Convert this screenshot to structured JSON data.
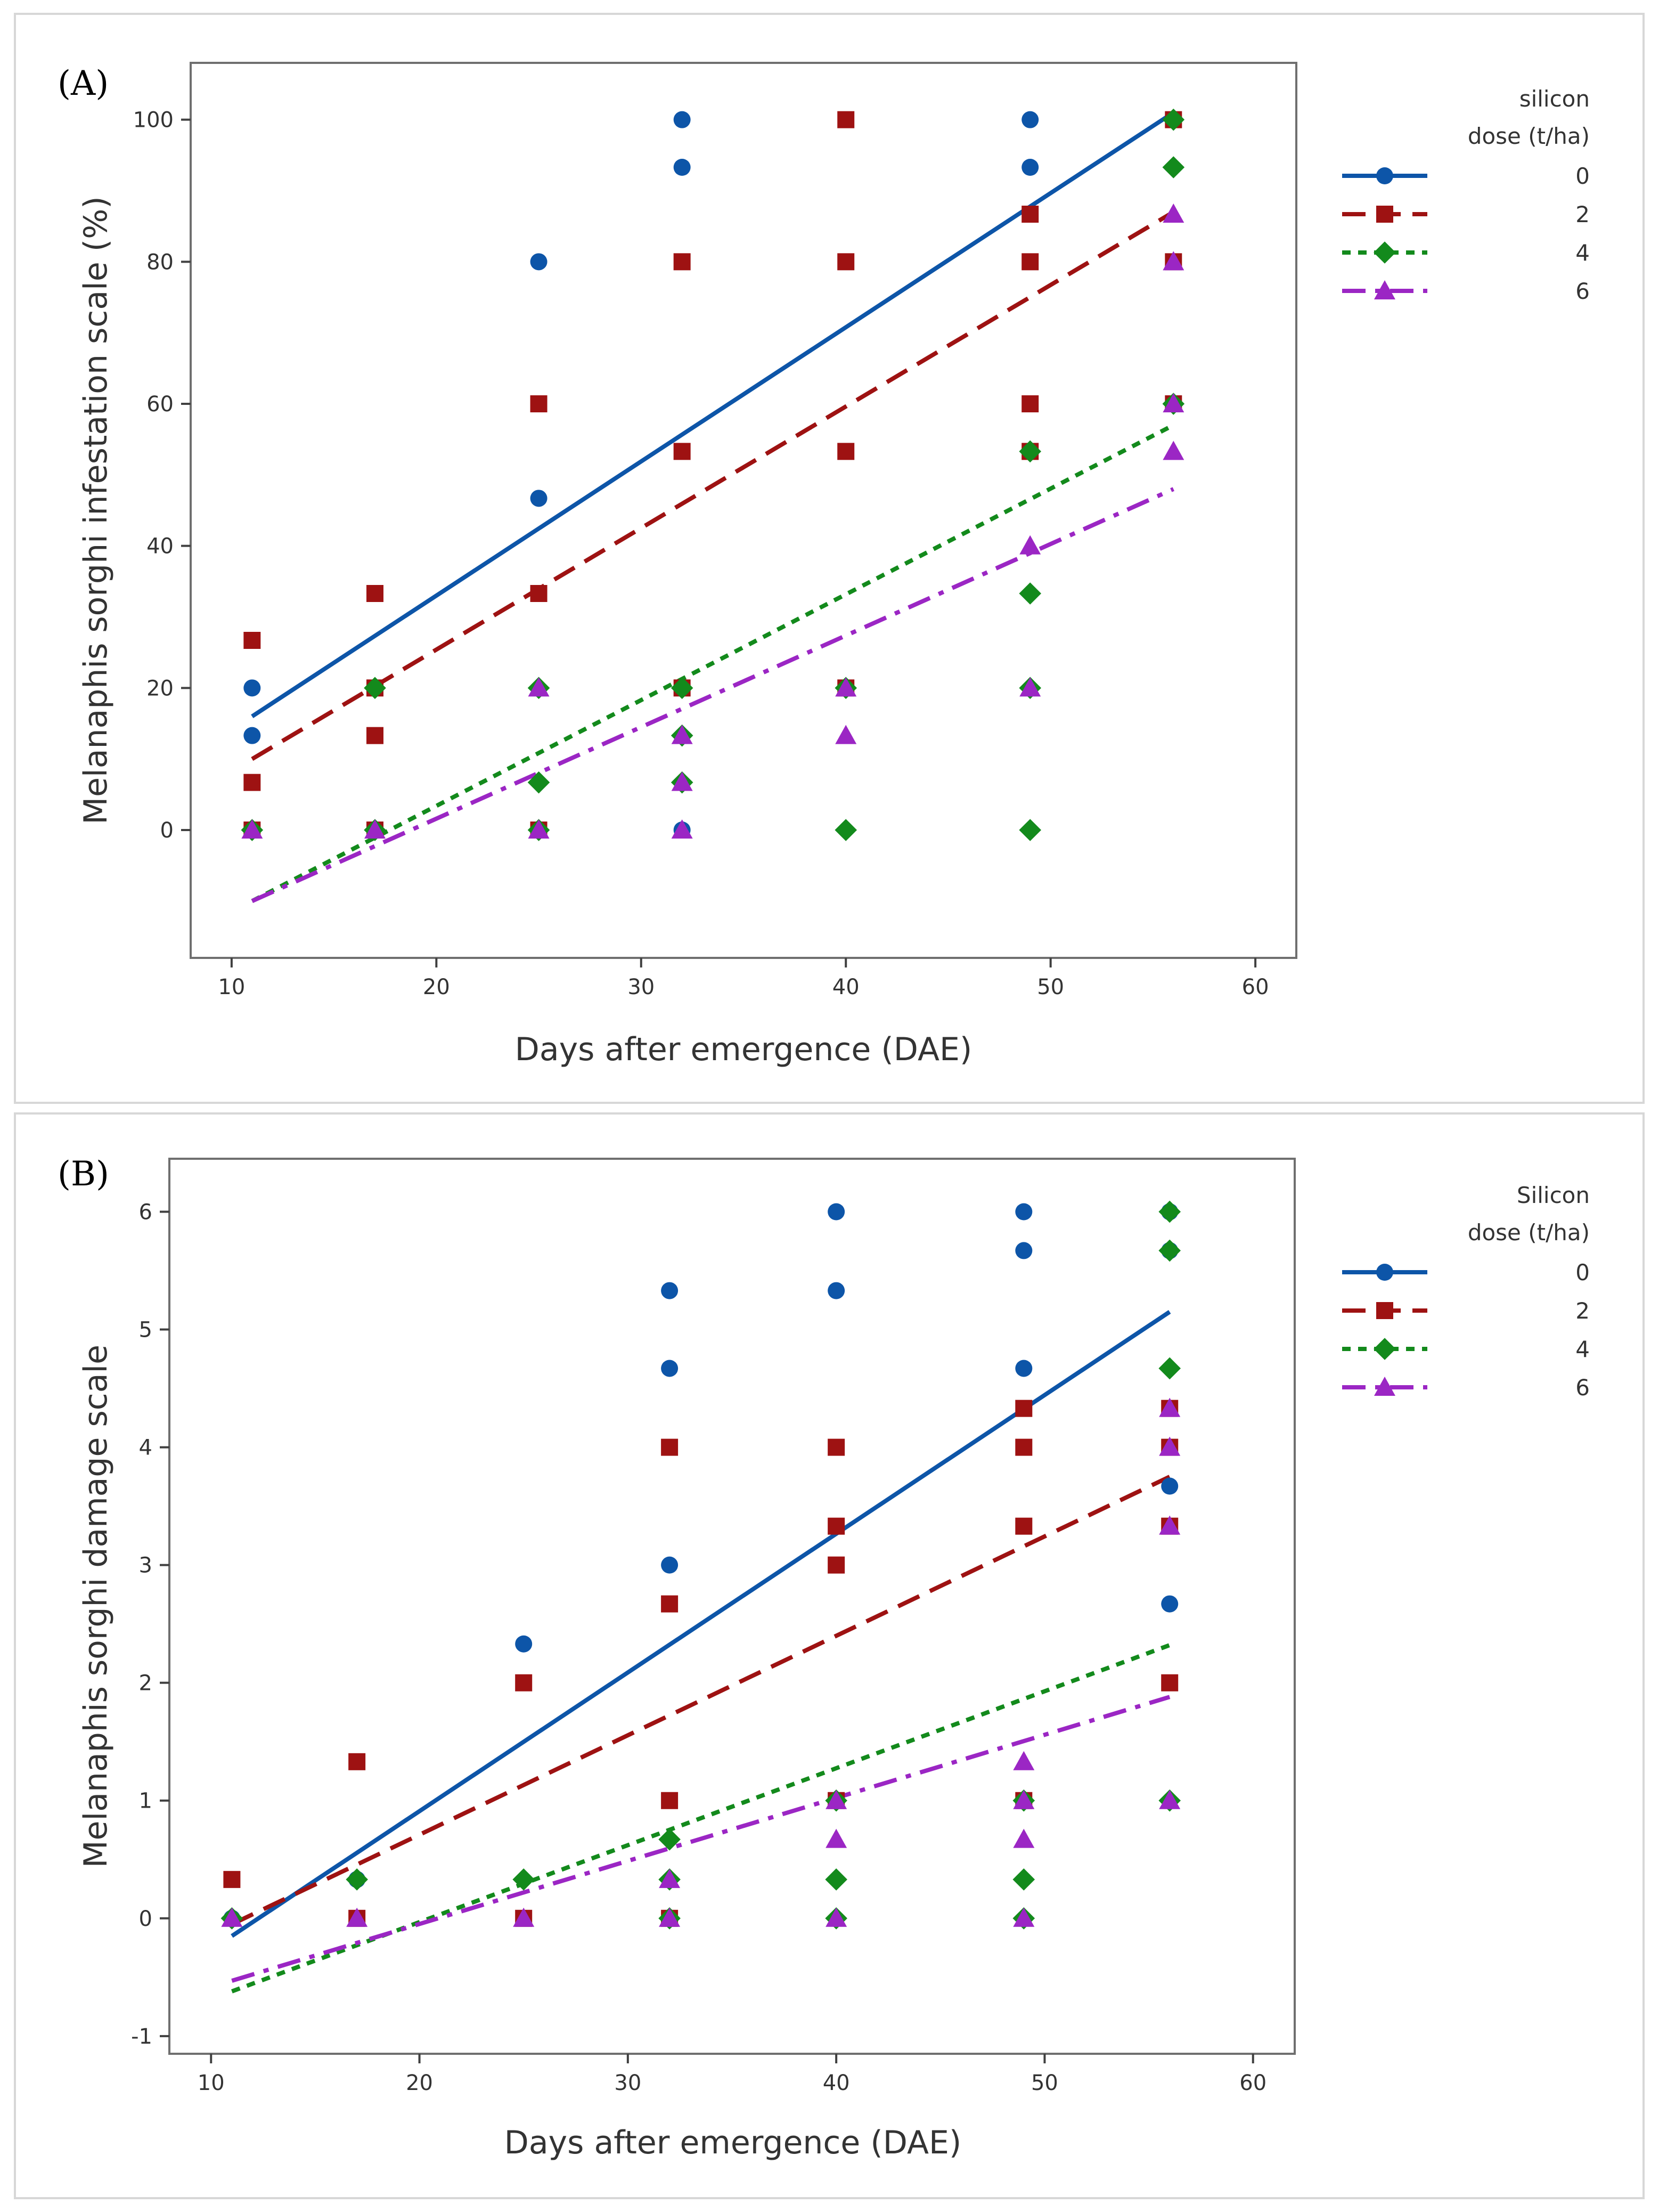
{
  "chart_data": [
    {
      "type": "scatter",
      "panel_label": "(A)",
      "xlabel": "Days after emergence (DAE)",
      "ylabel": "Melanaphis sorghi infestation scale (%)",
      "xlim": [
        8,
        62
      ],
      "ylim": [
        -18,
        108
      ],
      "xticks": [
        10,
        20,
        30,
        40,
        50,
        60
      ],
      "yticks": [
        0,
        20,
        40,
        60,
        80,
        100
      ],
      "legend_title": [
        "silicon",
        "dose (t/ha)"
      ],
      "legend_position": "right",
      "series": [
        {
          "name": "0",
          "color": "#0d55a8",
          "marker": "circle",
          "line_style": "solid",
          "fit_x": [
            11,
            56
          ],
          "fit_y": [
            16,
            101
          ],
          "points": [
            [
              11,
              20
            ],
            [
              11,
              13.3
            ],
            [
              11,
              0
            ],
            [
              17,
              20
            ],
            [
              17,
              0
            ],
            [
              25,
              80
            ],
            [
              25,
              46.7
            ],
            [
              25,
              0
            ],
            [
              32,
              100
            ],
            [
              32,
              93.3
            ],
            [
              32,
              0
            ],
            [
              49,
              100
            ],
            [
              49,
              93.3
            ],
            [
              56,
              100
            ],
            [
              56,
              60
            ]
          ]
        },
        {
          "name": "2",
          "color": "#9e1212",
          "marker": "square",
          "line_style": "dashed",
          "fit_x": [
            11,
            56
          ],
          "fit_y": [
            10,
            87
          ],
          "points": [
            [
              11,
              26.7
            ],
            [
              11,
              6.7
            ],
            [
              11,
              0
            ],
            [
              17,
              33.3
            ],
            [
              17,
              20
            ],
            [
              17,
              13.3
            ],
            [
              17,
              0
            ],
            [
              25,
              60
            ],
            [
              25,
              33.3
            ],
            [
              25,
              0
            ],
            [
              32,
              80
            ],
            [
              32,
              53.3
            ],
            [
              32,
              20
            ],
            [
              40,
              100
            ],
            [
              40,
              80
            ],
            [
              40,
              53.3
            ],
            [
              40,
              20
            ],
            [
              49,
              86.7
            ],
            [
              49,
              80
            ],
            [
              49,
              60
            ],
            [
              49,
              53.3
            ],
            [
              56,
              100
            ],
            [
              56,
              80
            ],
            [
              56,
              60
            ]
          ]
        },
        {
          "name": "4",
          "color": "#138a1c",
          "marker": "diamond",
          "line_style": "dotted",
          "fit_x": [
            11,
            56
          ],
          "fit_y": [
            -10,
            57
          ],
          "points": [
            [
              11,
              0
            ],
            [
              17,
              20
            ],
            [
              17,
              0
            ],
            [
              25,
              20
            ],
            [
              25,
              6.7
            ],
            [
              25,
              0
            ],
            [
              32,
              20
            ],
            [
              32,
              13.3
            ],
            [
              32,
              6.7
            ],
            [
              40,
              20
            ],
            [
              40,
              0
            ],
            [
              49,
              53.3
            ],
            [
              49,
              33.3
            ],
            [
              49,
              20
            ],
            [
              49,
              0
            ],
            [
              56,
              100
            ],
            [
              56,
              93.3
            ],
            [
              56,
              60
            ]
          ]
        },
        {
          "name": "6",
          "color": "#9b26c4",
          "marker": "triangle",
          "line_style": "dashdot",
          "fit_x": [
            11,
            56
          ],
          "fit_y": [
            -10,
            48
          ],
          "points": [
            [
              11,
              0
            ],
            [
              17,
              0
            ],
            [
              25,
              20
            ],
            [
              25,
              0
            ],
            [
              32,
              13.3
            ],
            [
              32,
              6.7
            ],
            [
              32,
              0
            ],
            [
              40,
              20
            ],
            [
              40,
              13.3
            ],
            [
              49,
              40
            ],
            [
              49,
              20
            ],
            [
              56,
              86.7
            ],
            [
              56,
              80
            ],
            [
              56,
              60
            ],
            [
              56,
              53.3
            ]
          ]
        }
      ]
    },
    {
      "type": "scatter",
      "panel_label": "(B)",
      "xlabel": "Days after emergence (DAE)",
      "ylabel": "Melanaphis sorghi damage scale",
      "xlim": [
        8,
        62
      ],
      "ylim": [
        -1.15,
        6.45
      ],
      "xticks": [
        10,
        20,
        30,
        40,
        50,
        60
      ],
      "yticks": [
        -1,
        0,
        1,
        2,
        3,
        4,
        5,
        6
      ],
      "legend_title": [
        "Silicon",
        "dose (t/ha)"
      ],
      "legend_position": "right",
      "series": [
        {
          "name": "0",
          "color": "#0d55a8",
          "marker": "circle",
          "line_style": "solid",
          "fit_x": [
            11,
            56
          ],
          "fit_y": [
            -0.15,
            5.15
          ],
          "points": [
            [
              11,
              0
            ],
            [
              17,
              0.33
            ],
            [
              25,
              2.33
            ],
            [
              32,
              5.33
            ],
            [
              32,
              4.67
            ],
            [
              32,
              3
            ],
            [
              40,
              6
            ],
            [
              40,
              5.33
            ],
            [
              49,
              6
            ],
            [
              49,
              5.67
            ],
            [
              49,
              4.67
            ],
            [
              56,
              6
            ],
            [
              56,
              5.67
            ],
            [
              56,
              3.67
            ],
            [
              56,
              2.67
            ]
          ]
        },
        {
          "name": "2",
          "color": "#9e1212",
          "marker": "square",
          "line_style": "dashed",
          "fit_x": [
            11,
            56
          ],
          "fit_y": [
            -0.05,
            3.75
          ],
          "points": [
            [
              11,
              0.33
            ],
            [
              17,
              1.33
            ],
            [
              17,
              0
            ],
            [
              25,
              2
            ],
            [
              25,
              0
            ],
            [
              32,
              4
            ],
            [
              32,
              2.67
            ],
            [
              32,
              1
            ],
            [
              32,
              0
            ],
            [
              40,
              4
            ],
            [
              40,
              3.33
            ],
            [
              40,
              3
            ],
            [
              40,
              1
            ],
            [
              49,
              4.33
            ],
            [
              49,
              4
            ],
            [
              49,
              3.33
            ],
            [
              49,
              1
            ],
            [
              56,
              4.33
            ],
            [
              56,
              4
            ],
            [
              56,
              3.33
            ],
            [
              56,
              2
            ]
          ]
        },
        {
          "name": "4",
          "color": "#138a1c",
          "marker": "diamond",
          "line_style": "dotted",
          "fit_x": [
            11,
            56
          ],
          "fit_y": [
            -0.62,
            2.32
          ],
          "points": [
            [
              11,
              0
            ],
            [
              17,
              0.33
            ],
            [
              25,
              0.33
            ],
            [
              32,
              0.67
            ],
            [
              32,
              0.33
            ],
            [
              32,
              0
            ],
            [
              40,
              1
            ],
            [
              40,
              0.33
            ],
            [
              40,
              0
            ],
            [
              49,
              1
            ],
            [
              49,
              0.33
            ],
            [
              49,
              0
            ],
            [
              56,
              6
            ],
            [
              56,
              5.67
            ],
            [
              56,
              4.67
            ],
            [
              56,
              1
            ]
          ]
        },
        {
          "name": "6",
          "color": "#9b26c4",
          "marker": "triangle",
          "line_style": "dashdot",
          "fit_x": [
            11,
            56
          ],
          "fit_y": [
            -0.53,
            1.88
          ],
          "points": [
            [
              11,
              0
            ],
            [
              17,
              0
            ],
            [
              25,
              0
            ],
            [
              32,
              0.33
            ],
            [
              32,
              0
            ],
            [
              40,
              1
            ],
            [
              40,
              0.67
            ],
            [
              40,
              0
            ],
            [
              49,
              1.33
            ],
            [
              49,
              1
            ],
            [
              49,
              0.67
            ],
            [
              49,
              0
            ],
            [
              56,
              4.33
            ],
            [
              56,
              4
            ],
            [
              56,
              3.33
            ],
            [
              56,
              1
            ]
          ]
        }
      ]
    }
  ]
}
